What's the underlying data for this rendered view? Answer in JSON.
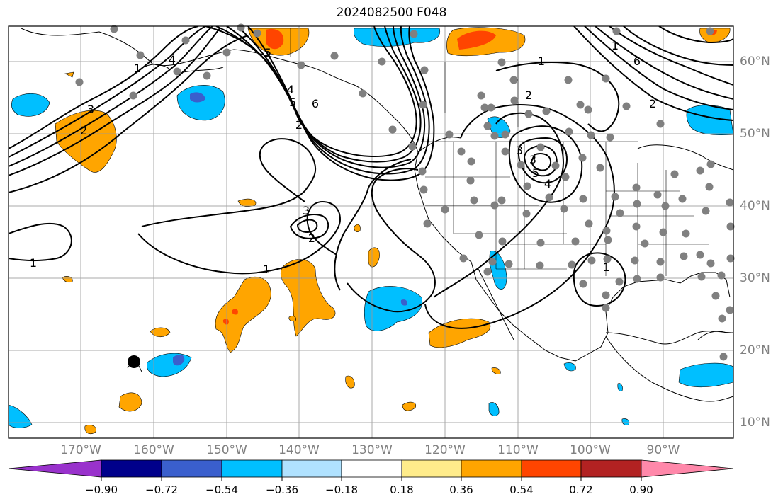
{
  "title": "2024082500 F048",
  "map_projection": "equirectangular",
  "extent": {
    "lon_min": -178,
    "lon_max": -80,
    "lat_min": 8,
    "lat_max": 65
  },
  "lat_labels": [
    {
      "lat": 60,
      "text": "60°N"
    },
    {
      "lat": 50,
      "text": "50°N"
    },
    {
      "lat": 40,
      "text": "40°N"
    },
    {
      "lat": 30,
      "text": "30°N"
    },
    {
      "lat": 20,
      "text": "20°N"
    },
    {
      "lat": 10,
      "text": "10°N"
    }
  ],
  "lon_labels": [
    {
      "lon": -170,
      "text": "170°W"
    },
    {
      "lon": -160,
      "text": "160°W"
    },
    {
      "lon": -150,
      "text": "150°W"
    },
    {
      "lon": -140,
      "text": "140°W"
    },
    {
      "lon": -130,
      "text": "130°W"
    },
    {
      "lon": -120,
      "text": "120°W"
    },
    {
      "lon": -110,
      "text": "110°W"
    },
    {
      "lon": -100,
      "text": "100°W"
    },
    {
      "lon": -90,
      "text": "90°W"
    }
  ],
  "colorbar": {
    "colors": [
      "#9932cc",
      "#00008b",
      "#3a5fcd",
      "#00bfff",
      "#b0e2ff",
      "#ffffff",
      "#ffec8b",
      "#ffa500",
      "#ff4500",
      "#b22222",
      "#ff88aa"
    ],
    "labels": [
      "−0.90",
      "−0.72",
      "−0.54",
      "−0.36",
      "−0.18",
      "0.18",
      "0.36",
      "0.54",
      "0.72",
      "0.90"
    ],
    "extend": "both"
  },
  "contour_labels": [
    "1",
    "2",
    "3",
    "4",
    "5",
    "6",
    "1",
    "2",
    "3",
    "4",
    "5",
    "1",
    "2",
    "3",
    "1",
    "2",
    "3",
    "4",
    "5",
    "6",
    "1",
    "2",
    "1"
  ],
  "stations_shown": true
}
